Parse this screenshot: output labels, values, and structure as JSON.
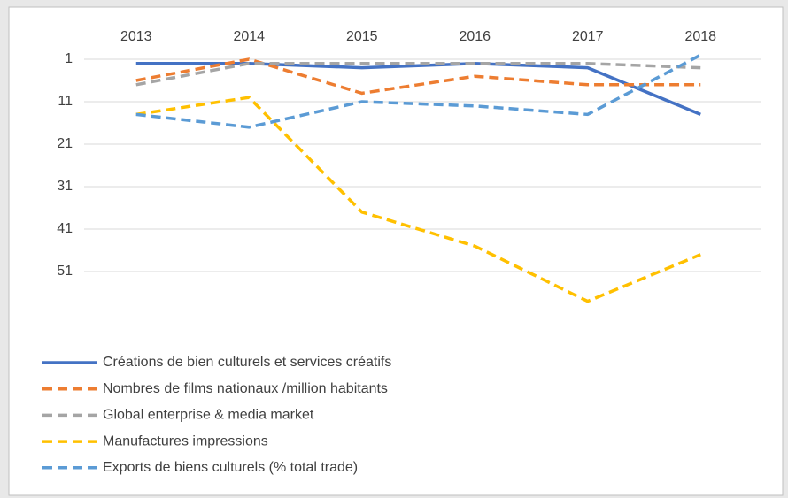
{
  "chart_data": {
    "type": "line",
    "categories": [
      "2013",
      "2014",
      "2015",
      "2016",
      "2017",
      "2018"
    ],
    "series": [
      {
        "name": "Créations de bien culturels et services créatifs",
        "color": "#4472c4",
        "dashed": false,
        "values": [
          2,
          2,
          3,
          2,
          3,
          14
        ]
      },
      {
        "name": "Nombres de films nationaux /million habitants",
        "color": "#ed7d31",
        "dashed": true,
        "values": [
          6,
          1,
          9,
          5,
          7,
          7
        ]
      },
      {
        "name": "Global enterprise & media market",
        "color": "#a5a5a5",
        "dashed": true,
        "values": [
          7,
          2,
          2,
          2,
          2,
          3
        ]
      },
      {
        "name": "Manufactures impressions",
        "color": "#ffc000",
        "dashed": true,
        "values": [
          14,
          10,
          37,
          45,
          58,
          47
        ]
      },
      {
        "name": "Exports de biens culturels (% total trade)",
        "color": "#5b9bd5",
        "dashed": true,
        "values": [
          14,
          17,
          11,
          12,
          14,
          0
        ]
      }
    ],
    "ylim": [
      1,
      61
    ],
    "yticks": [
      1,
      11,
      21,
      31,
      41,
      51
    ],
    "y_reversed": true,
    "grid": true,
    "legend": "bottom-left"
  }
}
